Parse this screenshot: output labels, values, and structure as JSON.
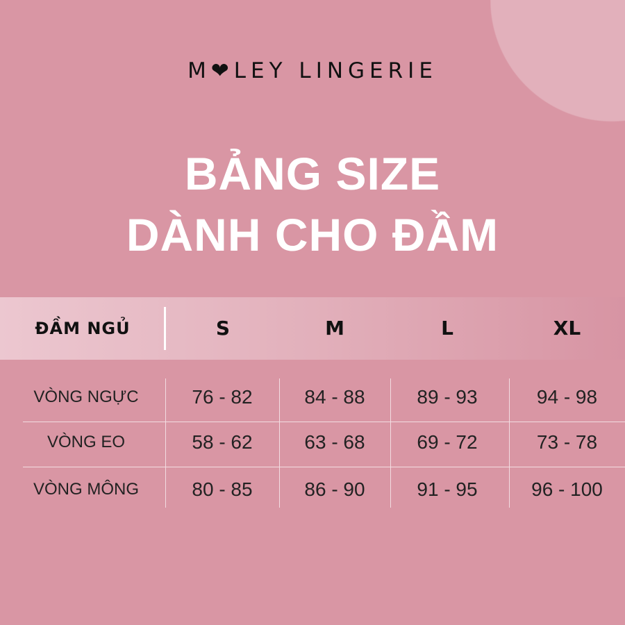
{
  "brand": {
    "logo_text": "MILEY LINGERIE",
    "display": "M❤LEY LINGERIE"
  },
  "title": {
    "line1": "BẢNG SIZE",
    "line2": "DÀNH CHO ĐẦM"
  },
  "table": {
    "corner_label": "ĐẦM NGỦ",
    "sizes": [
      "S",
      "M",
      "L",
      "XL"
    ],
    "rows": [
      {
        "label": "VÒNG NGỰC",
        "values": [
          "76 - 82",
          "84 - 88",
          "89 - 93",
          "94 - 98"
        ]
      },
      {
        "label": "VÒNG EO",
        "values": [
          "58 - 62",
          "63 - 68",
          "69 - 72",
          "73 - 78"
        ]
      },
      {
        "label": "VÒNG MÔNG",
        "values": [
          "80 - 85",
          "86 - 90",
          "91 - 95",
          "96 - 100"
        ]
      }
    ]
  },
  "colors": {
    "background": "#d996a4",
    "accent_circle": "#e2b0bb",
    "title": "#ffffff",
    "text": "#111111"
  }
}
